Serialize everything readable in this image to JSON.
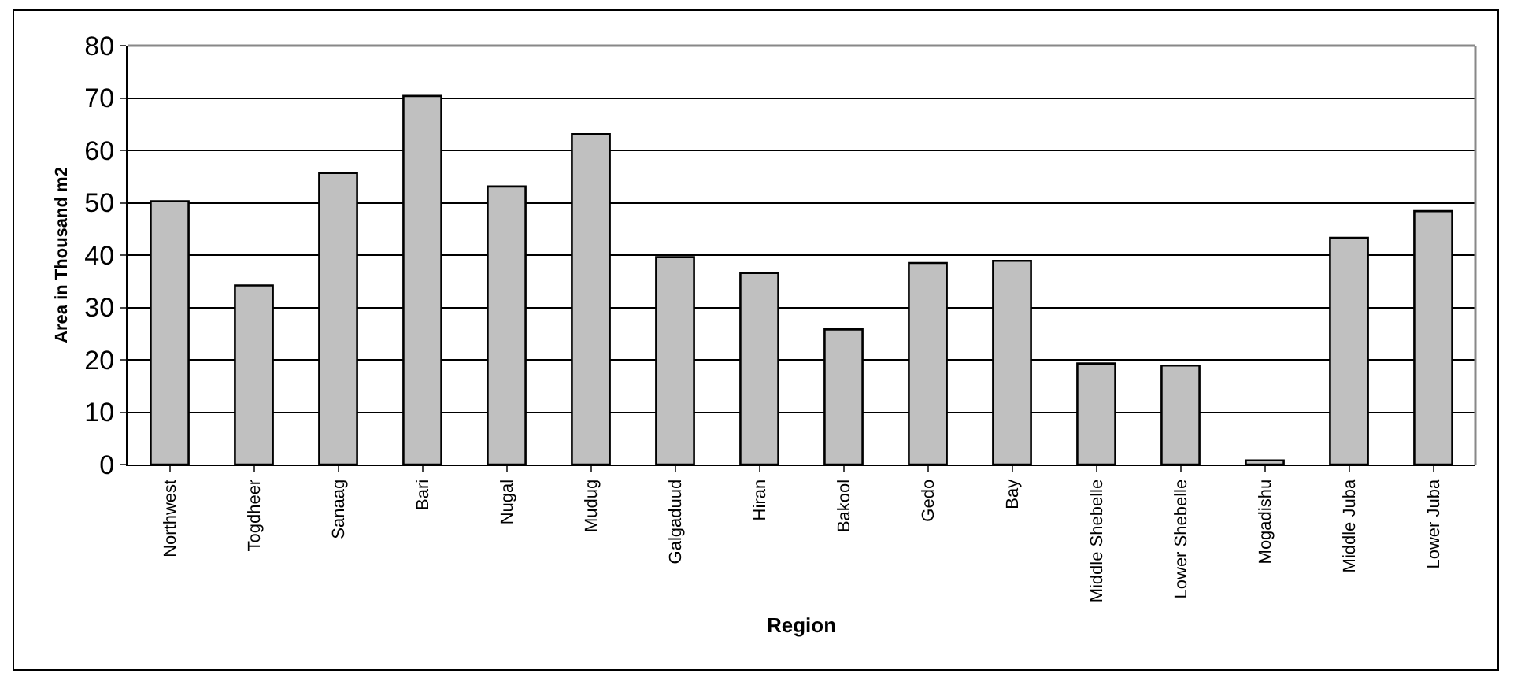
{
  "chart_data": {
    "type": "bar",
    "xlabel": "Region",
    "ylabel": "Area in Thousand m2",
    "categories": [
      "Northwest",
      "Togdheer",
      "Sanaag",
      "Bari",
      "Nugal",
      "Mudug",
      "Galgaduud",
      "Hiran",
      "Bakool",
      "Gedo",
      "Bay",
      "Middle Shebelle",
      "Lower Shebelle",
      "Mogadishu",
      "Middle Juba",
      "Lower Juba"
    ],
    "values": [
      50.3,
      34.2,
      55.7,
      70.4,
      53.1,
      63.1,
      39.6,
      36.6,
      25.8,
      38.5,
      38.9,
      19.3,
      18.9,
      0.8,
      43.3,
      48.4
    ],
    "color": "#c0c0c0",
    "ylim": [
      0,
      80
    ],
    "yticks": [
      0,
      10,
      20,
      30,
      40,
      50,
      60,
      70,
      80
    ],
    "grid": "y",
    "legend": false
  }
}
